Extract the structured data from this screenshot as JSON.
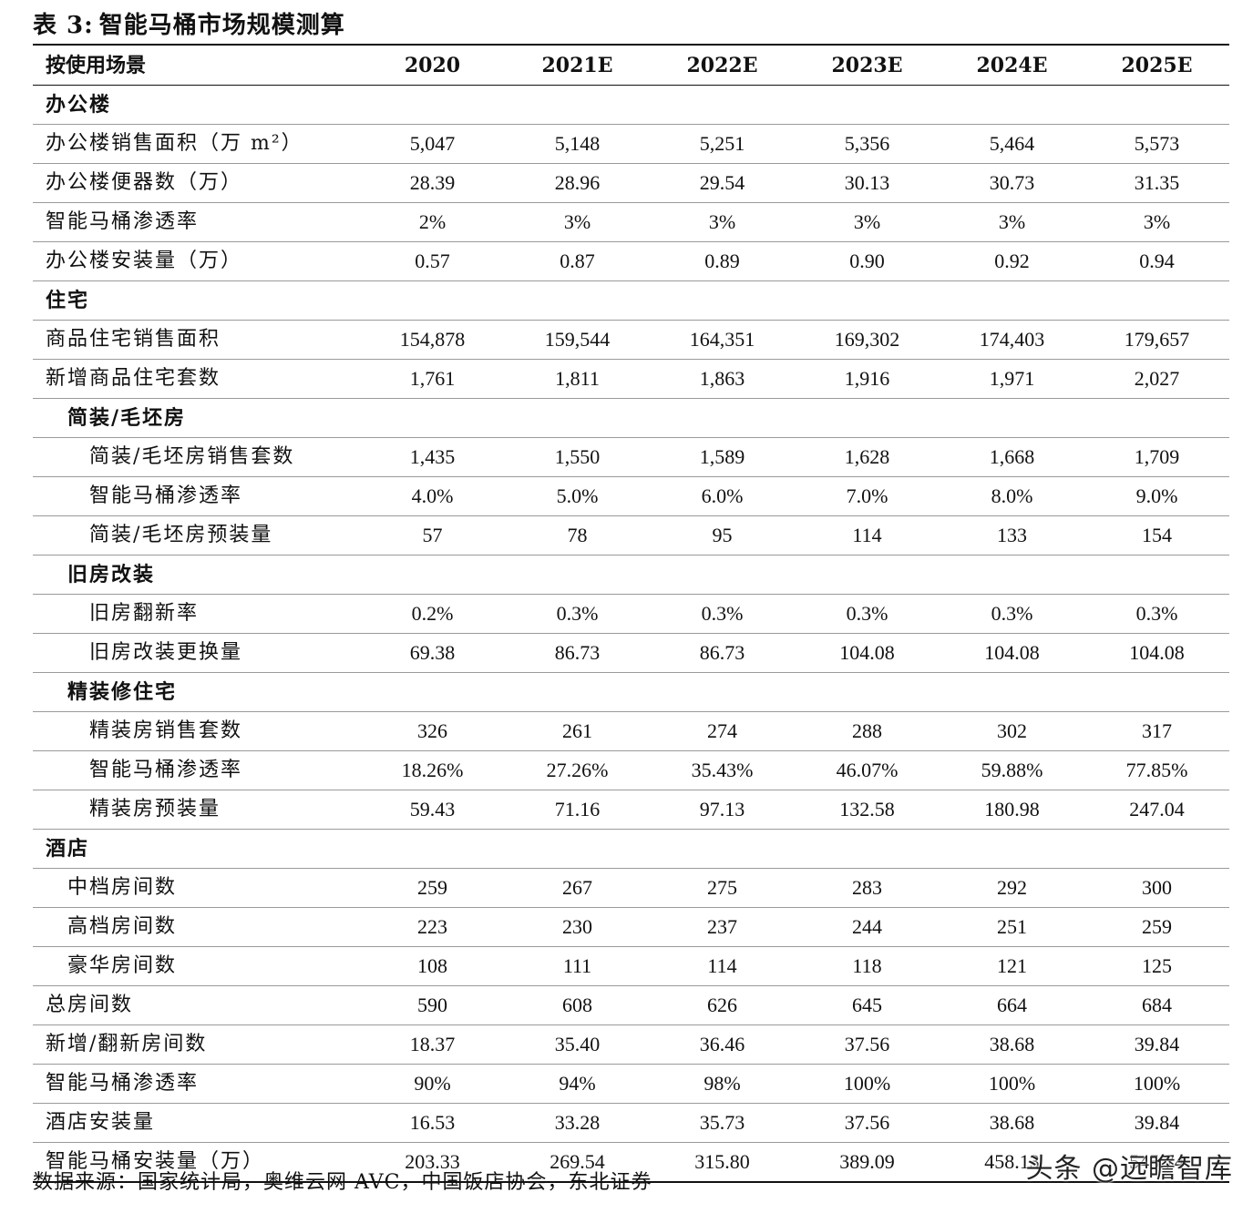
{
  "title": {
    "prefix": "表",
    "number": "3:",
    "text": "智能马桶市场规模测算"
  },
  "table": {
    "headers": [
      "按使用场景",
      "2020",
      "2021E",
      "2022E",
      "2023E",
      "2024E",
      "2025E"
    ],
    "rows": [
      {
        "label": "办公楼",
        "type": "section",
        "indent": 0,
        "values": []
      },
      {
        "label": "办公楼销售面积（万 m²）",
        "type": "data",
        "indent": 0,
        "values": [
          "5,047",
          "5,148",
          "5,251",
          "5,356",
          "5,464",
          "5,573"
        ]
      },
      {
        "label": "办公楼便器数（万）",
        "type": "data",
        "indent": 0,
        "values": [
          "28.39",
          "28.96",
          "29.54",
          "30.13",
          "30.73",
          "31.35"
        ]
      },
      {
        "label": "智能马桶渗透率",
        "type": "data",
        "indent": 0,
        "values": [
          "2%",
          "3%",
          "3%",
          "3%",
          "3%",
          "3%"
        ]
      },
      {
        "label": "办公楼安装量（万）",
        "type": "data",
        "indent": 0,
        "values": [
          "0.57",
          "0.87",
          "0.89",
          "0.90",
          "0.92",
          "0.94"
        ]
      },
      {
        "label": "住宅",
        "type": "section",
        "indent": 0,
        "values": []
      },
      {
        "label": "商品住宅销售面积",
        "type": "data",
        "indent": 0,
        "values": [
          "154,878",
          "159,544",
          "164,351",
          "169,302",
          "174,403",
          "179,657"
        ]
      },
      {
        "label": "新增商品住宅套数",
        "type": "data",
        "indent": 0,
        "values": [
          "1,761",
          "1,811",
          "1,863",
          "1,916",
          "1,971",
          "2,027"
        ]
      },
      {
        "label": "简装/毛坯房",
        "type": "section",
        "indent": 1,
        "values": []
      },
      {
        "label": "简装/毛坯房销售套数",
        "type": "data",
        "indent": 2,
        "values": [
          "1,435",
          "1,550",
          "1,589",
          "1,628",
          "1,668",
          "1,709"
        ]
      },
      {
        "label": "智能马桶渗透率",
        "type": "data",
        "indent": 2,
        "values": [
          "4.0%",
          "5.0%",
          "6.0%",
          "7.0%",
          "8.0%",
          "9.0%"
        ]
      },
      {
        "label": "简装/毛坯房预装量",
        "type": "data",
        "indent": 2,
        "values": [
          "57",
          "78",
          "95",
          "114",
          "133",
          "154"
        ]
      },
      {
        "label": "旧房改装",
        "type": "section",
        "indent": 1,
        "values": []
      },
      {
        "label": "旧房翻新率",
        "type": "data",
        "indent": 2,
        "values": [
          "0.2%",
          "0.3%",
          "0.3%",
          "0.3%",
          "0.3%",
          "0.3%"
        ]
      },
      {
        "label": "旧房改装更换量",
        "type": "data",
        "indent": 2,
        "values": [
          "69.38",
          "86.73",
          "86.73",
          "104.08",
          "104.08",
          "104.08"
        ]
      },
      {
        "label": "精装修住宅",
        "type": "section",
        "indent": 1,
        "values": []
      },
      {
        "label": "精装房销售套数",
        "type": "data",
        "indent": 2,
        "values": [
          "326",
          "261",
          "274",
          "288",
          "302",
          "317"
        ]
      },
      {
        "label": "智能马桶渗透率",
        "type": "data",
        "indent": 2,
        "values": [
          "18.26%",
          "27.26%",
          "35.43%",
          "46.07%",
          "59.88%",
          "77.85%"
        ]
      },
      {
        "label": "精装房预装量",
        "type": "data",
        "indent": 2,
        "values": [
          "59.43",
          "71.16",
          "97.13",
          "132.58",
          "180.98",
          "247.04"
        ]
      },
      {
        "label": "酒店",
        "type": "section",
        "indent": 0,
        "values": []
      },
      {
        "label": "中档房间数",
        "type": "data",
        "indent": 1,
        "values": [
          "259",
          "267",
          "275",
          "283",
          "292",
          "300"
        ]
      },
      {
        "label": "高档房间数",
        "type": "data",
        "indent": 1,
        "values": [
          "223",
          "230",
          "237",
          "244",
          "251",
          "259"
        ]
      },
      {
        "label": "豪华房间数",
        "type": "data",
        "indent": 1,
        "values": [
          "108",
          "111",
          "114",
          "118",
          "121",
          "125"
        ]
      },
      {
        "label": "总房间数",
        "type": "data",
        "indent": 0,
        "values": [
          "590",
          "608",
          "626",
          "645",
          "664",
          "684"
        ]
      },
      {
        "label": "新增/翻新房间数",
        "type": "data",
        "indent": 0,
        "values": [
          "18.37",
          "35.40",
          "36.46",
          "37.56",
          "38.68",
          "39.84"
        ]
      },
      {
        "label": "智能马桶渗透率",
        "type": "data",
        "indent": 0,
        "values": [
          "90%",
          "94%",
          "98%",
          "100%",
          "100%",
          "100%"
        ]
      },
      {
        "label": "酒店安装量",
        "type": "data",
        "indent": 0,
        "values": [
          "16.53",
          "33.28",
          "35.73",
          "37.56",
          "38.68",
          "39.84"
        ]
      },
      {
        "label": "智能马桶安装量（万）",
        "type": "data",
        "indent": 0,
        "values": [
          "203.33",
          "269.54",
          "315.80",
          "389.09",
          "458.13",
          "545.74"
        ]
      }
    ]
  },
  "source": "数据来源：国家统计局，奥维云网 AVC，中国饭店协会，东北证券",
  "watermark": "头条 @远瞻智库"
}
